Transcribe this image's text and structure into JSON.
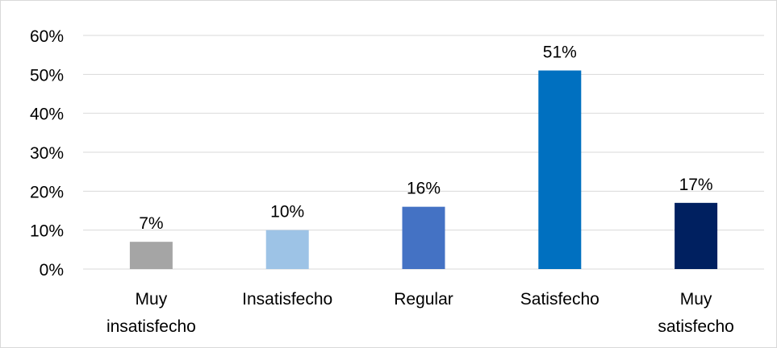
{
  "chart_data": {
    "type": "bar",
    "categories": [
      "Muy insatisfecho",
      "Insatisfecho",
      "Regular",
      "Satisfecho",
      "Muy satisfecho"
    ],
    "category_lines": [
      [
        "Muy",
        "insatisfecho"
      ],
      [
        "Insatisfecho"
      ],
      [
        "Regular"
      ],
      [
        "Satisfecho"
      ],
      [
        "Muy",
        "satisfecho"
      ]
    ],
    "values": [
      7,
      10,
      16,
      51,
      17
    ],
    "data_labels": [
      "7%",
      "10%",
      "16%",
      "51%",
      "17%"
    ],
    "bar_colors": [
      "#a5a5a5",
      "#9dc3e6",
      "#4472c4",
      "#0070c0",
      "#002060"
    ],
    "ylim": [
      0,
      60
    ],
    "yticks": [
      0,
      10,
      20,
      30,
      40,
      50,
      60
    ],
    "ytick_labels": [
      "0%",
      "10%",
      "20%",
      "30%",
      "40%",
      "50%",
      "60%"
    ],
    "grid": true,
    "gridline_color": "#d9d9d9",
    "title": "",
    "xlabel": "",
    "ylabel": ""
  }
}
